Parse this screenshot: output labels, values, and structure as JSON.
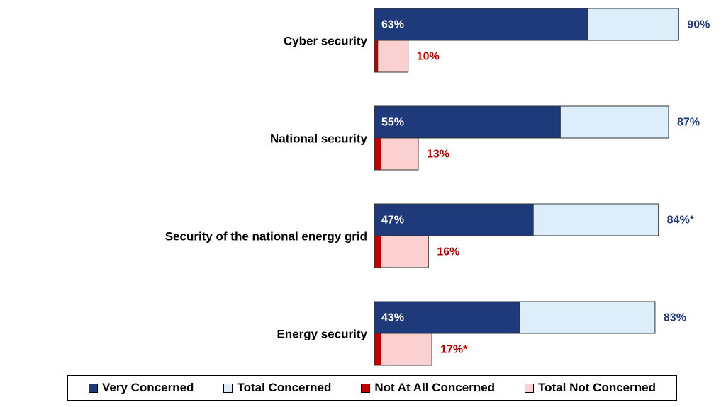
{
  "chart_data": {
    "type": "bar",
    "orientation": "horizontal",
    "categories": [
      "Cyber security",
      "National security",
      "Security of the national energy grid",
      "Energy security"
    ],
    "series": [
      {
        "name": "Very Concerned",
        "values": [
          63,
          55,
          47,
          43
        ],
        "color": "#1f3a7a"
      },
      {
        "name": "Total Concerned",
        "values": [
          90,
          87,
          84,
          83
        ],
        "color": "#dbeefa"
      },
      {
        "name": "Not At All Concerned",
        "values": [
          1,
          2,
          2,
          2
        ],
        "color": "#c00000"
      },
      {
        "name": "Total Not Concerned",
        "values": [
          10,
          13,
          16,
          17
        ],
        "color": "#fbd0d0"
      }
    ],
    "labels": {
      "very_concerned": [
        "63%",
        "55%",
        "47%",
        "43%"
      ],
      "total_concerned": [
        "90%",
        "87%",
        "84%*",
        "83%"
      ],
      "total_not_concerned": [
        "10%",
        "13%",
        "16%",
        "17%*"
      ]
    },
    "xlim": [
      0,
      100
    ],
    "legend_position": "bottom"
  },
  "legend": [
    {
      "label": "Very Concerned",
      "color": "#1f3a7a"
    },
    {
      "label": "Total Concerned",
      "color": "#dbeefa"
    },
    {
      "label": "Not At All Concerned",
      "color": "#c00000"
    },
    {
      "label": "Total Not Concerned",
      "color": "#fbd0d0"
    }
  ]
}
